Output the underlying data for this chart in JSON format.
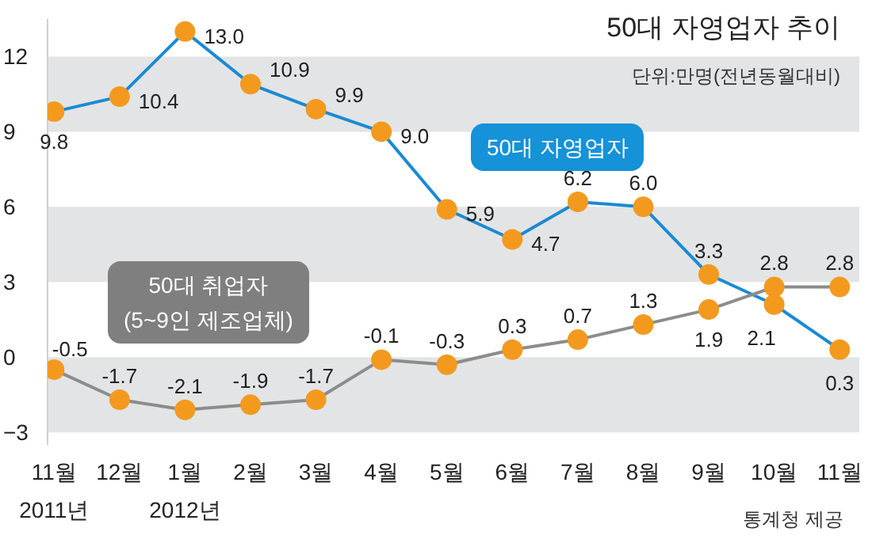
{
  "chart_data": {
    "type": "line",
    "title": "50대 자영업자 추이",
    "subtitle": "단위:만명(전년동월대비)",
    "annotations": [
      "통계청 제공"
    ],
    "categories": [
      "11월\n2011년",
      "12월",
      "1월\n2012년",
      "2월",
      "3월",
      "4월",
      "5월",
      "6월",
      "7월",
      "8월",
      "9월",
      "10월",
      "11월"
    ],
    "series": [
      {
        "name": "50대 자영업자",
        "color": "#1a8ad4",
        "values": [
          9.8,
          10.4,
          13.0,
          10.9,
          9.9,
          9.0,
          5.9,
          4.7,
          6.2,
          6.0,
          3.3,
          2.1,
          0.3
        ],
        "value_labels": [
          "9.8",
          "10.4",
          "13.0",
          "10.9",
          "9.9",
          "9.0",
          "5.9",
          "4.7",
          "6.2",
          "6.0",
          "3.3",
          "2.1",
          "0.3"
        ]
      },
      {
        "name": "50대 취업자\n(5~9인 제조업체)",
        "color": "#8c8c8c",
        "values": [
          -0.5,
          -1.7,
          -2.1,
          -1.9,
          -1.7,
          -0.1,
          -0.3,
          0.3,
          0.7,
          1.3,
          1.9,
          2.8,
          2.8
        ]
      }
    ],
    "ylim": [
      -3.5,
      13.5
    ],
    "yticks": [
      -3,
      0,
      3,
      6,
      9,
      12
    ],
    "bands": [
      {
        "axis": "y",
        "from": 9,
        "to": 12,
        "color": "#e3e4e5"
      },
      {
        "axis": "y",
        "from": 3,
        "to": 6,
        "color": "#e3e4e5"
      },
      {
        "axis": "y",
        "from": -3,
        "to": 0,
        "color": "#e3e4e5"
      }
    ],
    "marker": "circle",
    "line_style": "solid",
    "data_labels": true
  }
}
